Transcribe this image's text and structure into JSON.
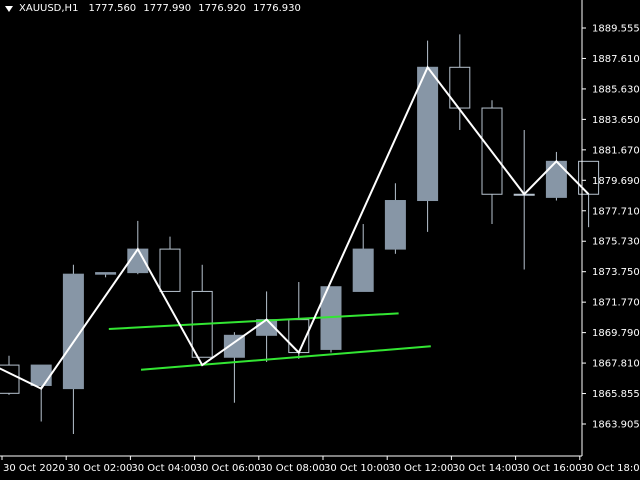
{
  "header": {
    "symbol": "XAUUSD,H1",
    "open": "1777.560",
    "high": "1777.990",
    "low": "1776.920",
    "close": "1776.930"
  },
  "colors": {
    "background": "#000000",
    "candle_body": "#8796A6",
    "candle_outline": "#B8C4D0",
    "wick": "#B8C4D0",
    "zigzag": "#FFFFFF",
    "channel": "#33E633",
    "axis": "#FFFFFF"
  },
  "chart_data": {
    "type": "candlestick",
    "ylim": [
      1862.9,
      1891.1
    ],
    "y_ticks": [
      "1889.555",
      "1887.610",
      "1885.630",
      "1883.650",
      "1881.670",
      "1879.690",
      "1877.710",
      "1875.730",
      "1873.750",
      "1871.770",
      "1869.790",
      "1867.810",
      "1865.855",
      "1863.905"
    ],
    "x_ticks": [
      "30 Oct 2020",
      "30 Oct 02:00",
      "30 Oct 04:00",
      "30 Oct 06:00",
      "30 Oct 08:00",
      "30 Oct 10:00",
      "30 Oct 12:00",
      "30 Oct 14:00",
      "30 Oct 16:00",
      "30 Oct 18:00"
    ],
    "candles": [
      {
        "o": 1868.7,
        "h": 1869.3,
        "l": 1866.8,
        "c": 1866.9
      },
      {
        "o": 1867.4,
        "h": 1868.7,
        "l": 1865.1,
        "c": 1868.7
      },
      {
        "o": 1867.2,
        "h": 1875.1,
        "l": 1864.3,
        "c": 1874.5
      },
      {
        "o": 1874.5,
        "h": 1874.6,
        "l": 1874.3,
        "c": 1874.6
      },
      {
        "o": 1874.6,
        "h": 1877.9,
        "l": 1874.5,
        "c": 1876.1
      },
      {
        "o": 1876.1,
        "h": 1876.9,
        "l": 1873.4,
        "c": 1873.4
      },
      {
        "o": 1873.4,
        "h": 1875.1,
        "l": 1869.2,
        "c": 1869.2
      },
      {
        "o": 1869.2,
        "h": 1870.8,
        "l": 1866.3,
        "c": 1870.6
      },
      {
        "o": 1870.6,
        "h": 1873.4,
        "l": 1868.9,
        "c": 1871.6
      },
      {
        "o": 1871.6,
        "h": 1874.0,
        "l": 1869.1,
        "c": 1869.5
      },
      {
        "o": 1869.7,
        "h": 1873.7,
        "l": 1869.5,
        "c": 1873.7
      },
      {
        "o": 1873.4,
        "h": 1877.7,
        "l": 1873.4,
        "c": 1876.1
      },
      {
        "o": 1876.1,
        "h": 1880.3,
        "l": 1875.8,
        "c": 1879.2
      },
      {
        "o": 1879.2,
        "h": 1889.4,
        "l": 1877.2,
        "c": 1887.7
      },
      {
        "o": 1887.7,
        "h": 1889.8,
        "l": 1883.7,
        "c": 1885.1
      },
      {
        "o": 1885.1,
        "h": 1885.6,
        "l": 1877.7,
        "c": 1879.6
      },
      {
        "o": 1879.6,
        "h": 1883.7,
        "l": 1874.8,
        "c": 1879.6
      },
      {
        "o": 1879.4,
        "h": 1882.3,
        "l": 1879.2,
        "c": 1881.7
      },
      {
        "o": 1881.7,
        "h": 1881.7,
        "l": 1877.5,
        "c": 1879.6
      }
    ],
    "zigzag": [
      {
        "i": -0.5,
        "p": 1868.7
      },
      {
        "i": 1,
        "p": 1867.2
      },
      {
        "i": 4,
        "p": 1876.1
      },
      {
        "i": 6,
        "p": 1868.7
      },
      {
        "i": 8,
        "p": 1871.6
      },
      {
        "i": 9,
        "p": 1869.5
      },
      {
        "i": 13,
        "p": 1887.7
      },
      {
        "i": 16,
        "p": 1879.6
      },
      {
        "i": 17,
        "p": 1881.7
      },
      {
        "i": 18,
        "p": 1879.6
      }
    ],
    "channel_lines": [
      {
        "from": {
          "i": 3.1,
          "p": 1871.0
        },
        "to": {
          "i": 12.1,
          "p": 1872.0
        }
      },
      {
        "from": {
          "i": 4.1,
          "p": 1868.4
        },
        "to": {
          "i": 13.1,
          "p": 1869.9
        }
      }
    ]
  }
}
